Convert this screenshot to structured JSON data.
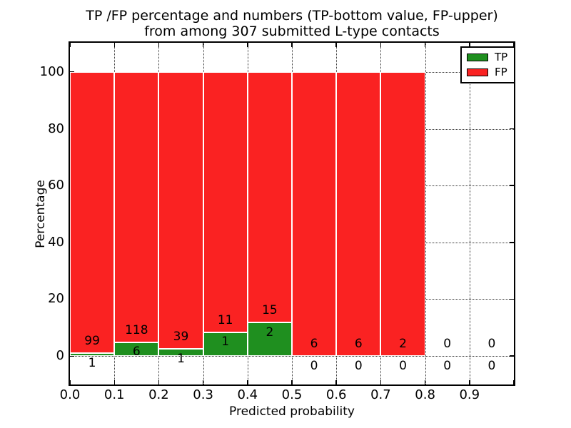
{
  "title": {
    "line1": "TP /FP percentage and numbers (TP-bottom value, FP-upper)",
    "line2": "from among 307 submitted L-type contacts"
  },
  "axes": {
    "xlabel": "Predicted probability",
    "ylabel": "Percentage",
    "xticks": [
      {
        "v": 0.0,
        "label": "0.0"
      },
      {
        "v": 0.1,
        "label": "0.1"
      },
      {
        "v": 0.2,
        "label": "0.2"
      },
      {
        "v": 0.3,
        "label": "0.3"
      },
      {
        "v": 0.4,
        "label": "0.4"
      },
      {
        "v": 0.5,
        "label": "0.5"
      },
      {
        "v": 0.6,
        "label": "0.6"
      },
      {
        "v": 0.7,
        "label": "0.7"
      },
      {
        "v": 0.8,
        "label": "0.8"
      },
      {
        "v": 0.9,
        "label": "0.9"
      },
      {
        "v": 1.0,
        "label": ""
      }
    ],
    "yticks": [
      {
        "v": 0,
        "label": "0"
      },
      {
        "v": 20,
        "label": "20"
      },
      {
        "v": 40,
        "label": "40"
      },
      {
        "v": 60,
        "label": "60"
      },
      {
        "v": 80,
        "label": "80"
      },
      {
        "v": 100,
        "label": "100"
      }
    ]
  },
  "legend": {
    "position": "upper right",
    "items": [
      {
        "label": "TP",
        "color": "#1f8f1f"
      },
      {
        "label": "FP",
        "color": "#fa2222"
      }
    ]
  },
  "chart_data": {
    "type": "bar",
    "stacked": true,
    "normalization": "each 0.1-wide bin scaled so TP+FP spans 100%; labels show raw counts",
    "title": "TP /FP percentage and numbers (TP-bottom value, FP-upper) from among 307 submitted L-type contacts",
    "xlabel": "Predicted probability",
    "ylabel": "Percentage",
    "xlim": [
      0.0,
      1.0
    ],
    "ylim": [
      -10,
      110
    ],
    "grid": "dotted",
    "bin_width": 0.1,
    "total_contacts": 307,
    "categories": [
      "0.0-0.1",
      "0.1-0.2",
      "0.2-0.3",
      "0.3-0.4",
      "0.4-0.5",
      "0.5-0.6",
      "0.6-0.7",
      "0.7-0.8",
      "0.8-0.9",
      "0.9-1.0"
    ],
    "series": [
      {
        "name": "TP",
        "color": "#1f8f1f",
        "counts": [
          1,
          6,
          1,
          1,
          2,
          0,
          0,
          0,
          0,
          0
        ]
      },
      {
        "name": "FP",
        "color": "#fa2222",
        "counts": [
          99,
          118,
          39,
          11,
          15,
          6,
          6,
          2,
          0,
          0
        ]
      }
    ],
    "bins": [
      {
        "range": [
          0.0,
          0.1
        ],
        "tp": 1,
        "fp": 99,
        "tp_percent": 1.0,
        "fp_percent": 99.0
      },
      {
        "range": [
          0.1,
          0.2
        ],
        "tp": 6,
        "fp": 118,
        "tp_percent": 4.8,
        "fp_percent": 95.2
      },
      {
        "range": [
          0.2,
          0.3
        ],
        "tp": 1,
        "fp": 39,
        "tp_percent": 2.5,
        "fp_percent": 97.5
      },
      {
        "range": [
          0.3,
          0.4
        ],
        "tp": 1,
        "fp": 11,
        "tp_percent": 8.3,
        "fp_percent": 91.7
      },
      {
        "range": [
          0.4,
          0.5
        ],
        "tp": 2,
        "fp": 15,
        "tp_percent": 11.8,
        "fp_percent": 88.2
      },
      {
        "range": [
          0.5,
          0.6
        ],
        "tp": 0,
        "fp": 6,
        "tp_percent": 0.0,
        "fp_percent": 100.0
      },
      {
        "range": [
          0.6,
          0.7
        ],
        "tp": 0,
        "fp": 6,
        "tp_percent": 0.0,
        "fp_percent": 100.0
      },
      {
        "range": [
          0.7,
          0.8
        ],
        "tp": 0,
        "fp": 2,
        "tp_percent": 0.0,
        "fp_percent": 100.0
      },
      {
        "range": [
          0.8,
          0.9
        ],
        "tp": 0,
        "fp": 0,
        "tp_percent": null,
        "fp_percent": null
      },
      {
        "range": [
          0.9,
          1.0
        ],
        "tp": 0,
        "fp": 0,
        "tp_percent": null,
        "fp_percent": null
      }
    ]
  }
}
